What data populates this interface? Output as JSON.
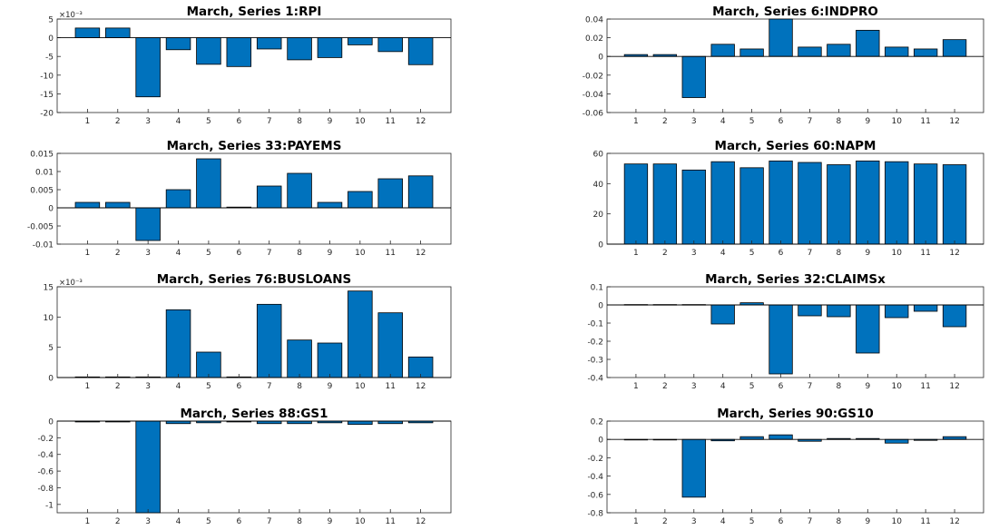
{
  "chart_data": [
    {
      "type": "bar",
      "title": "March, Series 1:RPI",
      "categories": [
        "1",
        "2",
        "3",
        "4",
        "5",
        "6",
        "7",
        "8",
        "9",
        "10",
        "11",
        "12"
      ],
      "values": [
        2.6,
        2.6,
        -15.8,
        -3.2,
        -7.1,
        -7.7,
        -3.0,
        -5.9,
        -5.3,
        -1.9,
        -3.7,
        -7.2
      ],
      "ylim": [
        -20,
        5
      ],
      "yticks": [
        "-20",
        "-15",
        "-10",
        "-5",
        "0",
        "5"
      ],
      "exponent_label": "×10⁻³",
      "grid": false
    },
    {
      "type": "bar",
      "title": "March, Series 6:INDPRO",
      "categories": [
        "1",
        "2",
        "3",
        "4",
        "5",
        "6",
        "7",
        "8",
        "9",
        "10",
        "11",
        "12"
      ],
      "values": [
        0.002,
        0.002,
        -0.044,
        0.013,
        0.008,
        0.041,
        0.01,
        0.013,
        0.028,
        0.01,
        0.008,
        0.018
      ],
      "ylim": [
        -0.06,
        0.04
      ],
      "yticks": [
        "-0.06",
        "-0.04",
        "-0.02",
        "0",
        "0.02",
        "0.04"
      ],
      "grid": false
    },
    {
      "type": "bar",
      "title": "March, Series 33:PAYEMS",
      "categories": [
        "1",
        "2",
        "3",
        "4",
        "5",
        "6",
        "7",
        "8",
        "9",
        "10",
        "11",
        "12"
      ],
      "values": [
        0.0015,
        0.0015,
        -0.009,
        0.005,
        0.0135,
        0.0002,
        0.006,
        0.0095,
        0.0015,
        0.0045,
        0.008,
        0.0088
      ],
      "ylim": [
        -0.01,
        0.015
      ],
      "yticks": [
        "-0.01",
        "-0.005",
        "0",
        "0.005",
        "0.01",
        "0.015"
      ],
      "grid": false
    },
    {
      "type": "bar",
      "title": "March, Series 60:NAPM",
      "categories": [
        "1",
        "2",
        "3",
        "4",
        "5",
        "6",
        "7",
        "8",
        "9",
        "10",
        "11",
        "12"
      ],
      "values": [
        53,
        53,
        49,
        54.5,
        50.5,
        55,
        54,
        52.5,
        55,
        54.5,
        53,
        52.5
      ],
      "ylim": [
        0,
        60
      ],
      "yticks": [
        "0",
        "20",
        "40",
        "60"
      ],
      "grid": false
    },
    {
      "type": "bar",
      "title": "March, Series 76:BUSLOANS",
      "categories": [
        "1",
        "2",
        "3",
        "4",
        "5",
        "6",
        "7",
        "8",
        "9",
        "10",
        "11",
        "12"
      ],
      "values": [
        0.1,
        0.1,
        0.1,
        11.2,
        4.2,
        0.1,
        12.1,
        6.2,
        5.7,
        14.3,
        10.7,
        3.4
      ],
      "ylim": [
        0,
        15
      ],
      "yticks": [
        "0",
        "5",
        "10",
        "15"
      ],
      "exponent_label": "×10⁻³",
      "grid": false
    },
    {
      "type": "bar",
      "title": "March, Series 32:CLAIMSx",
      "categories": [
        "1",
        "2",
        "3",
        "4",
        "5",
        "6",
        "7",
        "8",
        "9",
        "10",
        "11",
        "12"
      ],
      "values": [
        0.002,
        0.002,
        0.002,
        -0.105,
        0.012,
        -0.38,
        -0.06,
        -0.065,
        -0.265,
        -0.07,
        -0.035,
        -0.12
      ],
      "ylim": [
        -0.4,
        0.1
      ],
      "yticks": [
        "-0.4",
        "-0.3",
        "-0.2",
        "-0.1",
        "0",
        "0.1"
      ],
      "grid": false
    },
    {
      "type": "bar",
      "title": "March, Series 88:GS1",
      "categories": [
        "1",
        "2",
        "3",
        "4",
        "5",
        "6",
        "7",
        "8",
        "9",
        "10",
        "11",
        "12"
      ],
      "values": [
        -0.01,
        -0.01,
        -1.1,
        -0.03,
        -0.02,
        -0.01,
        -0.03,
        -0.03,
        -0.02,
        -0.04,
        -0.03,
        -0.02
      ],
      "ylim": [
        -1.1,
        0
      ],
      "yticks": [
        "-1",
        "-0.8",
        "-0.6",
        "-0.4",
        "-0.2",
        "0"
      ],
      "grid": false
    },
    {
      "type": "bar",
      "title": "March, Series 90:GS10",
      "categories": [
        "1",
        "2",
        "3",
        "4",
        "5",
        "6",
        "7",
        "8",
        "9",
        "10",
        "11",
        "12"
      ],
      "values": [
        -0.005,
        -0.005,
        -0.63,
        -0.015,
        0.03,
        0.05,
        -0.02,
        0.01,
        0.01,
        -0.04,
        -0.01,
        0.03
      ],
      "ylim": [
        -0.8,
        0.2
      ],
      "yticks": [
        "-0.8",
        "-0.6",
        "-0.4",
        "-0.2",
        "0",
        "0.2"
      ],
      "grid": false
    }
  ]
}
